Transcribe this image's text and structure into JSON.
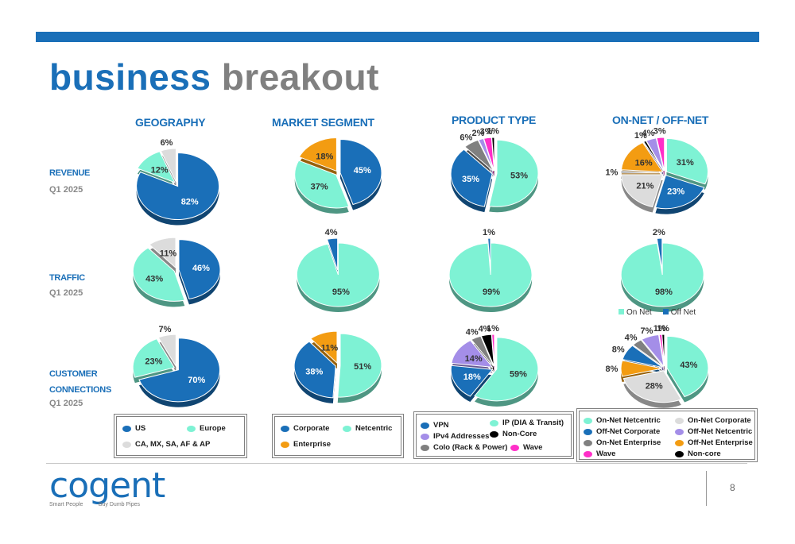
{
  "title": {
    "word1": "business",
    "word2": "breakout"
  },
  "columns": [
    "GEOGRAPHY",
    "MARKET SEGMENT",
    "PRODUCT TYPE",
    "ON-NET / OFF-NET"
  ],
  "rows": [
    {
      "label": "REVENUE",
      "label2": "",
      "sub": "Q1 2025"
    },
    {
      "label": "TRAFFIC",
      "label2": "",
      "sub": "Q1 2025"
    },
    {
      "label": "CUSTOMER",
      "label2": "CONNECTIONS",
      "sub": "Q1 2025"
    }
  ],
  "colors": {
    "us": "#1a6fb8",
    "europe": "#7ef2d4",
    "other": "#dcdcdc",
    "corporate": "#1a6fb8",
    "netcentric": "#7ef2d4",
    "enterprise": "#f39c12",
    "vpn": "#1a6fb8",
    "ip": "#7ef2d4",
    "ipv4": "#a48ee8",
    "noncore": "#000000",
    "colo": "#808080",
    "wave": "#ff2fc8",
    "onnet_netcentric": "#7ef2d4",
    "offnet_corporate": "#1a6fb8",
    "onnet_enterprise": "#808080",
    "onnet_corporate": "#dcdcdc",
    "offnet_netcentric": "#a48ee8",
    "offnet_enterprise": "#f39c12",
    "noncore2": "#000000"
  },
  "chart_data": [
    {
      "type": "pie",
      "row": "REVENUE",
      "column": "GEOGRAPHY",
      "categories": [
        "US",
        "Europe",
        "CA, MX, SA, AF & AP"
      ],
      "values": [
        82,
        12,
        6
      ]
    },
    {
      "type": "pie",
      "row": "REVENUE",
      "column": "MARKET SEGMENT",
      "categories": [
        "Corporate",
        "Netcentric",
        "Enterprise"
      ],
      "values": [
        45,
        37,
        18
      ]
    },
    {
      "type": "pie",
      "row": "REVENUE",
      "column": "PRODUCT TYPE",
      "categories": [
        "IP (DIA & Transit)",
        "VPN",
        "Colo (Rack & Power)",
        "IPv4 Addresses",
        "Wave",
        "Non-Core"
      ],
      "values": [
        53,
        35,
        6,
        2,
        3,
        1
      ]
    },
    {
      "type": "pie",
      "row": "REVENUE",
      "column": "ON-NET / OFF-NET",
      "categories": [
        "On-Net Netcentric",
        "Off-Net Corporate",
        "On-Net Corporate",
        "On-Net Enterprise",
        "Off-Net Enterprise",
        "Non-core",
        "Off-Net Netcentric",
        "Wave"
      ],
      "values": [
        31,
        23,
        21,
        1,
        16,
        1,
        4,
        3
      ]
    },
    {
      "type": "pie",
      "row": "TRAFFIC",
      "column": "GEOGRAPHY",
      "categories": [
        "US",
        "Europe",
        "CA, MX, SA, AF & AP"
      ],
      "values": [
        46,
        43,
        11
      ]
    },
    {
      "type": "pie",
      "row": "TRAFFIC",
      "column": "MARKET SEGMENT",
      "categories": [
        "Netcentric",
        "Corporate"
      ],
      "values": [
        95,
        4
      ]
    },
    {
      "type": "pie",
      "row": "TRAFFIC",
      "column": "PRODUCT TYPE",
      "categories": [
        "IP (DIA & Transit)",
        "VPN"
      ],
      "values": [
        99,
        1
      ]
    },
    {
      "type": "pie",
      "row": "TRAFFIC",
      "column": "ON-NET / OFF-NET",
      "categories": [
        "On Net",
        "Off Net"
      ],
      "values": [
        98,
        2
      ]
    },
    {
      "type": "pie",
      "row": "CUSTOMER CONNECTIONS",
      "column": "GEOGRAPHY",
      "categories": [
        "US",
        "Europe",
        "CA, MX, SA, AF & AP"
      ],
      "values": [
        70,
        23,
        7
      ]
    },
    {
      "type": "pie",
      "row": "CUSTOMER CONNECTIONS",
      "column": "MARKET SEGMENT",
      "categories": [
        "Netcentric",
        "Corporate",
        "Enterprise"
      ],
      "values": [
        51,
        38,
        11
      ]
    },
    {
      "type": "pie",
      "row": "CUSTOMER CONNECTIONS",
      "column": "PRODUCT TYPE",
      "categories": [
        "IP (DIA & Transit)",
        "VPN",
        "IPv4 Addresses",
        "Colo (Rack & Power)",
        "Non-Core",
        "Wave"
      ],
      "values": [
        59,
        18,
        14,
        4,
        4,
        1
      ]
    },
    {
      "type": "pie",
      "row": "CUSTOMER CONNECTIONS",
      "column": "ON-NET / OFF-NET",
      "categories": [
        "On-Net Netcentric",
        "On-Net Corporate",
        "Off-Net Enterprise",
        "Off-Net Corporate",
        "On-Net Enterprise",
        "Off-Net Netcentric",
        "Wave",
        "Non-core"
      ],
      "values": [
        43,
        28,
        8,
        8,
        4,
        7,
        1,
        1
      ]
    }
  ],
  "legends": {
    "geography": [
      "US",
      "Europe",
      "CA, MX, SA, AF & AP"
    ],
    "market": [
      "Corporate",
      "Netcentric",
      "Enterprise"
    ],
    "product": [
      "VPN",
      "IP (DIA & Transit)",
      "IPv4 Addresses",
      "Non-Core",
      "Colo (Rack & Power)",
      "Wave"
    ],
    "onoff": [
      "On-Net Netcentric",
      "On-Net Corporate",
      "Off-Net Corporate",
      "Off-Net Netcentric",
      "On-Net Enterprise",
      "Off-Net Enterprise",
      "Wave",
      "Non-core"
    ],
    "onoff_traffic": [
      "On Net",
      "Off Net"
    ]
  },
  "footer": {
    "logo": "cogent",
    "tag1": "Smart People",
    "tag2": "Buy Dumb Pipes",
    "page": "8"
  }
}
